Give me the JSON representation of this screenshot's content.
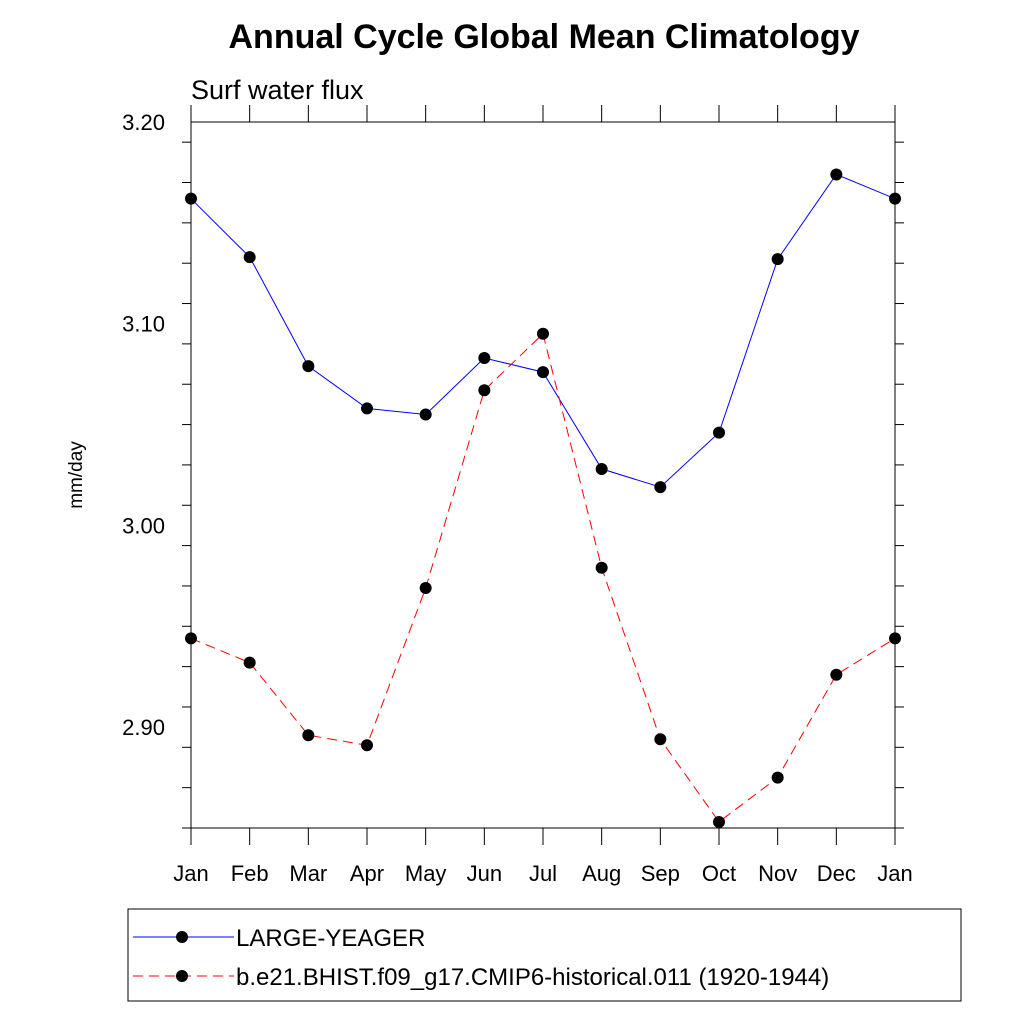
{
  "chart_data": {
    "type": "line",
    "title": "Annual Cycle Global Mean Climatology",
    "subtitle": "Surf water flux",
    "ylabel": "mm/day",
    "xlabel": "",
    "categories": [
      "Jan",
      "Feb",
      "Mar",
      "Apr",
      "May",
      "Jun",
      "Jul",
      "Aug",
      "Sep",
      "Oct",
      "Nov",
      "Dec",
      "Jan"
    ],
    "ylim": [
      2.85,
      3.2
    ],
    "yticks": [
      2.9,
      3.0,
      3.1,
      3.2
    ],
    "ytick_labels": [
      "2.90",
      "3.00",
      "3.10",
      "3.20"
    ],
    "grid": false,
    "legend_position": "bottom",
    "series": [
      {
        "name": "LARGE-YEAGER",
        "color": "#0000ff",
        "dash": "solid",
        "marker": "filled-circle",
        "values": [
          3.162,
          3.133,
          3.079,
          3.058,
          3.055,
          3.083,
          3.076,
          3.028,
          3.019,
          3.046,
          3.132,
          3.174,
          3.162
        ]
      },
      {
        "name": "b.e21.BHIST.f09_g17.CMIP6-historical.011 (1920-1944)",
        "color": "#ff0000",
        "dash": "dashed",
        "marker": "filled-circle",
        "values": [
          2.944,
          2.932,
          2.896,
          2.891,
          2.969,
          3.067,
          3.095,
          2.979,
          2.894,
          2.853,
          2.875,
          2.926,
          2.944
        ]
      }
    ]
  }
}
